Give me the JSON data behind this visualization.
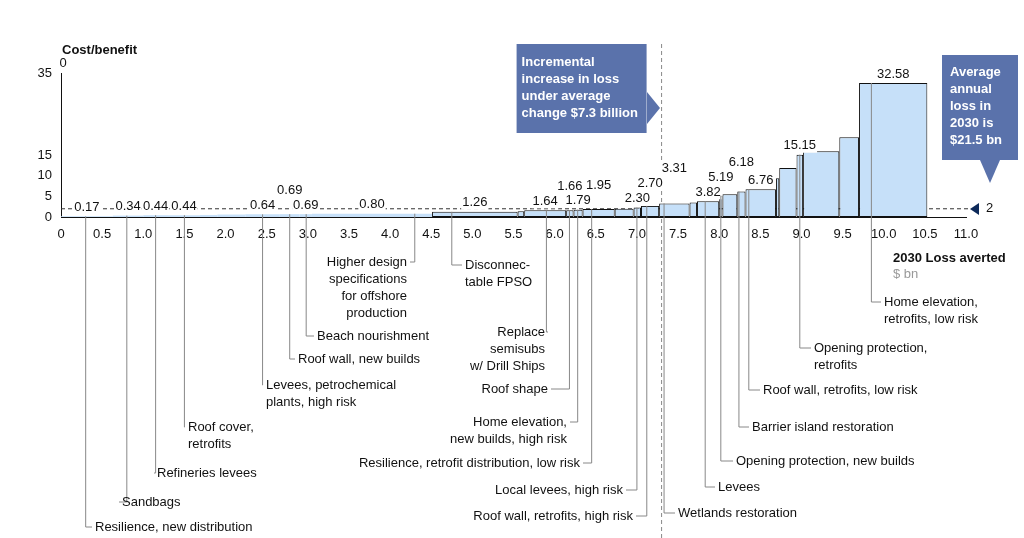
{
  "chart_data": {
    "type": "histogram",
    "ylabel": "Cost/benefit",
    "xlabel": "2030 Loss averted",
    "color": "#c6e0f9",
    "bins": [
      0,
      0.63,
      1.0,
      1.3,
      1.69,
      1.9,
      2.24,
      2.66,
      2.9,
      3.05,
      4.51,
      5.55,
      5.63,
      6.14,
      6.23,
      6.34,
      6.73,
      6.96,
      7.05,
      7.27,
      7.64,
      7.73,
      8.0,
      8.04,
      8.22,
      8.32,
      8.69,
      8.73,
      8.94,
      9.02,
      9.46,
      9.7,
      10.53
    ],
    "values": [
      0.17,
      0.34,
      0.44,
      0.44,
      0.5,
      0.6,
      0.64,
      0.69,
      0.69,
      0.8,
      1.26,
      1.4,
      1.64,
      1.66,
      1.79,
      1.95,
      2.0,
      2.3,
      2.7,
      3.31,
      3.5,
      3.82,
      5.19,
      5.5,
      6.18,
      6.76,
      9.4,
      11.9,
      15.15,
      16,
      19.4,
      32.58
    ],
    "value_labels": [
      "0.17",
      "0.34",
      "0.44",
      "0.44",
      null,
      null,
      "0.64",
      "0.69",
      "0.69",
      "0.80",
      "1.26",
      null,
      "1.64",
      "1.66",
      "1.79",
      "1.95",
      null,
      "2.30",
      "2.70",
      "3.31",
      null,
      "3.82",
      "5.19",
      null,
      "6.18",
      "6.76",
      null,
      null,
      "15.15",
      null,
      null,
      "32.58"
    ],
    "xlim": [
      0,
      11
    ],
    "xticks": [
      0,
      0.5,
      {
        "value": 1,
        "label": "1.0"
      },
      1.5,
      {
        "value": 2,
        "label": "2.0"
      },
      2.5,
      {
        "value": 3,
        "label": "3.0"
      },
      3.5,
      {
        "value": 4,
        "label": "4.0"
      },
      4.5,
      {
        "value": 5,
        "label": "5.0"
      },
      5.5,
      {
        "value": 6,
        "label": "6.0"
      },
      6.5,
      {
        "value": 7,
        "label": "7.0"
      },
      7.5,
      {
        "value": 8,
        "label": "8.0"
      },
      8.5,
      {
        "value": 9,
        "label": "9.0"
      },
      9.5,
      {
        "value": 10,
        "label": "10.0"
      },
      10.5,
      {
        "value": 11,
        "label": "11.0"
      }
    ],
    "ylim": [
      0,
      35
    ],
    "yticks": [
      0,
      5,
      10,
      15,
      35
    ],
    "ref_lines": [
      {
        "axis": "y",
        "value": 2,
        "label": "2",
        "line_style": "dashed"
      },
      {
        "axis": "x",
        "value": 7.3,
        "label": "Incremental\nincrease in loss\nunder average\nchange $7.3 billion",
        "line_style": "dashed"
      }
    ],
    "annotations": [
      {
        "text": "Resilience, new distribution",
        "x": 0.3,
        "y": 0.17
      },
      {
        "text": "Sandbags",
        "x": 0.8,
        "y": 0.34
      },
      {
        "text": "Refineries levees",
        "x": 1.15,
        "y": 0.44
      },
      {
        "text": "Roof cover,\nretrofits",
        "x": 1.5,
        "y": 0.44
      },
      {
        "text": "Levees, petrochemical\nplants, high risk",
        "x": 2.45,
        "y": 0.64
      },
      {
        "text": "Roof wall, new builds",
        "x": 2.78,
        "y": 0.69
      },
      {
        "text": "Beach nourishment",
        "x": 2.98,
        "y": 0.69
      },
      {
        "text": "Higher design\nspecifications\nfor offshore\nproduction",
        "x": 4.3,
        "y": 0.8
      },
      {
        "text": "Disconnec-\ntable FPSO",
        "x": 4.75,
        "y": 1.26
      },
      {
        "text": "Replace\nsemisubs\nw/ Drill Ships",
        "x": 5.9,
        "y": 1.64
      },
      {
        "text": "Roof shape",
        "x": 6.18,
        "y": 1.66
      },
      {
        "text": "Home elevation,\nnew builds, high risk",
        "x": 6.28,
        "y": 1.79
      },
      {
        "text": "Resilience, retrofit distribution, low risk",
        "x": 6.45,
        "y": 1.95
      },
      {
        "text": "Local levees, high risk",
        "x": 7.0,
        "y": 2.3
      },
      {
        "text": "Roof wall, retrofits, high risk",
        "x": 7.12,
        "y": 2.7
      },
      {
        "text": "Wetlands restoration",
        "x": 7.33,
        "y": 3.31
      },
      {
        "text": "Levees",
        "x": 7.83,
        "y": 3.82
      },
      {
        "text": "Opening protection, new builds",
        "x": 8.02,
        "y": 5.19
      },
      {
        "text": "Barrier island restoration",
        "x": 8.24,
        "y": 6.18
      },
      {
        "text": "Roof wall, retrofits, low risk",
        "x": 8.36,
        "y": 6.76
      },
      {
        "text": "Opening protection,\nretrofits",
        "x": 8.98,
        "y": 15.15
      },
      {
        "text": "Home elevation,\nretrofits, low risk",
        "x": 9.85,
        "y": 32.58
      },
      "Average\nannual\nloss in\n2030 is\n$21.5 bn",
      "$ bn",
      "0"
    ]
  }
}
